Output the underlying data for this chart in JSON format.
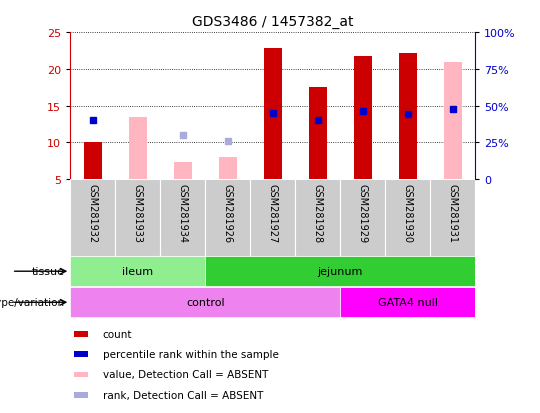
{
  "title": "GDS3486 / 1457382_at",
  "samples": [
    "GSM281932",
    "GSM281933",
    "GSM281934",
    "GSM281926",
    "GSM281927",
    "GSM281928",
    "GSM281929",
    "GSM281930",
    "GSM281931"
  ],
  "count_values": [
    10.1,
    null,
    null,
    null,
    22.8,
    17.5,
    21.7,
    22.2,
    null
  ],
  "rank_values": [
    13.0,
    null,
    null,
    null,
    14.0,
    13.0,
    14.3,
    13.8,
    14.5
  ],
  "absent_value_values": [
    null,
    13.4,
    7.3,
    8.0,
    null,
    null,
    null,
    null,
    21.0
  ],
  "absent_rank_values": [
    null,
    null,
    11.0,
    10.2,
    null,
    null,
    null,
    null,
    null
  ],
  "ylim": [
    5,
    25
  ],
  "yticks": [
    5,
    10,
    15,
    20,
    25
  ],
  "right_yticks": [
    0,
    25,
    50,
    75,
    100
  ],
  "tissue_groups": [
    {
      "label": "ileum",
      "start": 0,
      "end": 3,
      "color": "#90EE90"
    },
    {
      "label": "jejunum",
      "start": 3,
      "end": 9,
      "color": "#32CD32"
    }
  ],
  "genotype_groups": [
    {
      "label": "control",
      "start": 0,
      "end": 6,
      "color": "#EE82EE"
    },
    {
      "label": "GATA4 null",
      "start": 6,
      "end": 9,
      "color": "#FF00FF"
    }
  ],
  "count_color": "#CC0000",
  "rank_color": "#0000CC",
  "absent_value_color": "#FFB6C1",
  "absent_rank_color": "#AAAADD",
  "axis_color_left": "#CC0000",
  "axis_color_right": "#0000CC",
  "sample_box_color": "#CCCCCC",
  "legend_items": [
    {
      "label": "count",
      "color": "#CC0000"
    },
    {
      "label": "percentile rank within the sample",
      "color": "#0000CC"
    },
    {
      "label": "value, Detection Call = ABSENT",
      "color": "#FFB6C1"
    },
    {
      "label": "rank, Detection Call = ABSENT",
      "color": "#AAAADD"
    }
  ]
}
